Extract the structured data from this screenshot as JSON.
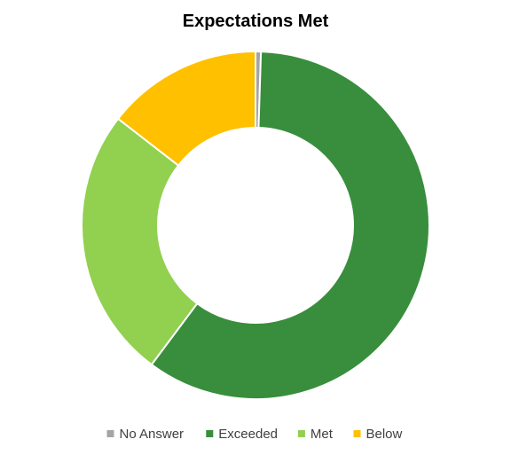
{
  "chart_data": {
    "type": "donut",
    "title": "Expectations Met",
    "categories": [
      "No Answer",
      "Exceeded",
      "Met",
      "Below"
    ],
    "values": [
      0.5,
      59.7,
      25.3,
      14.5
    ],
    "colors": [
      "#a5a5a5",
      "#388e3c",
      "#92d050",
      "#ffc000"
    ],
    "legend": "bottom"
  }
}
